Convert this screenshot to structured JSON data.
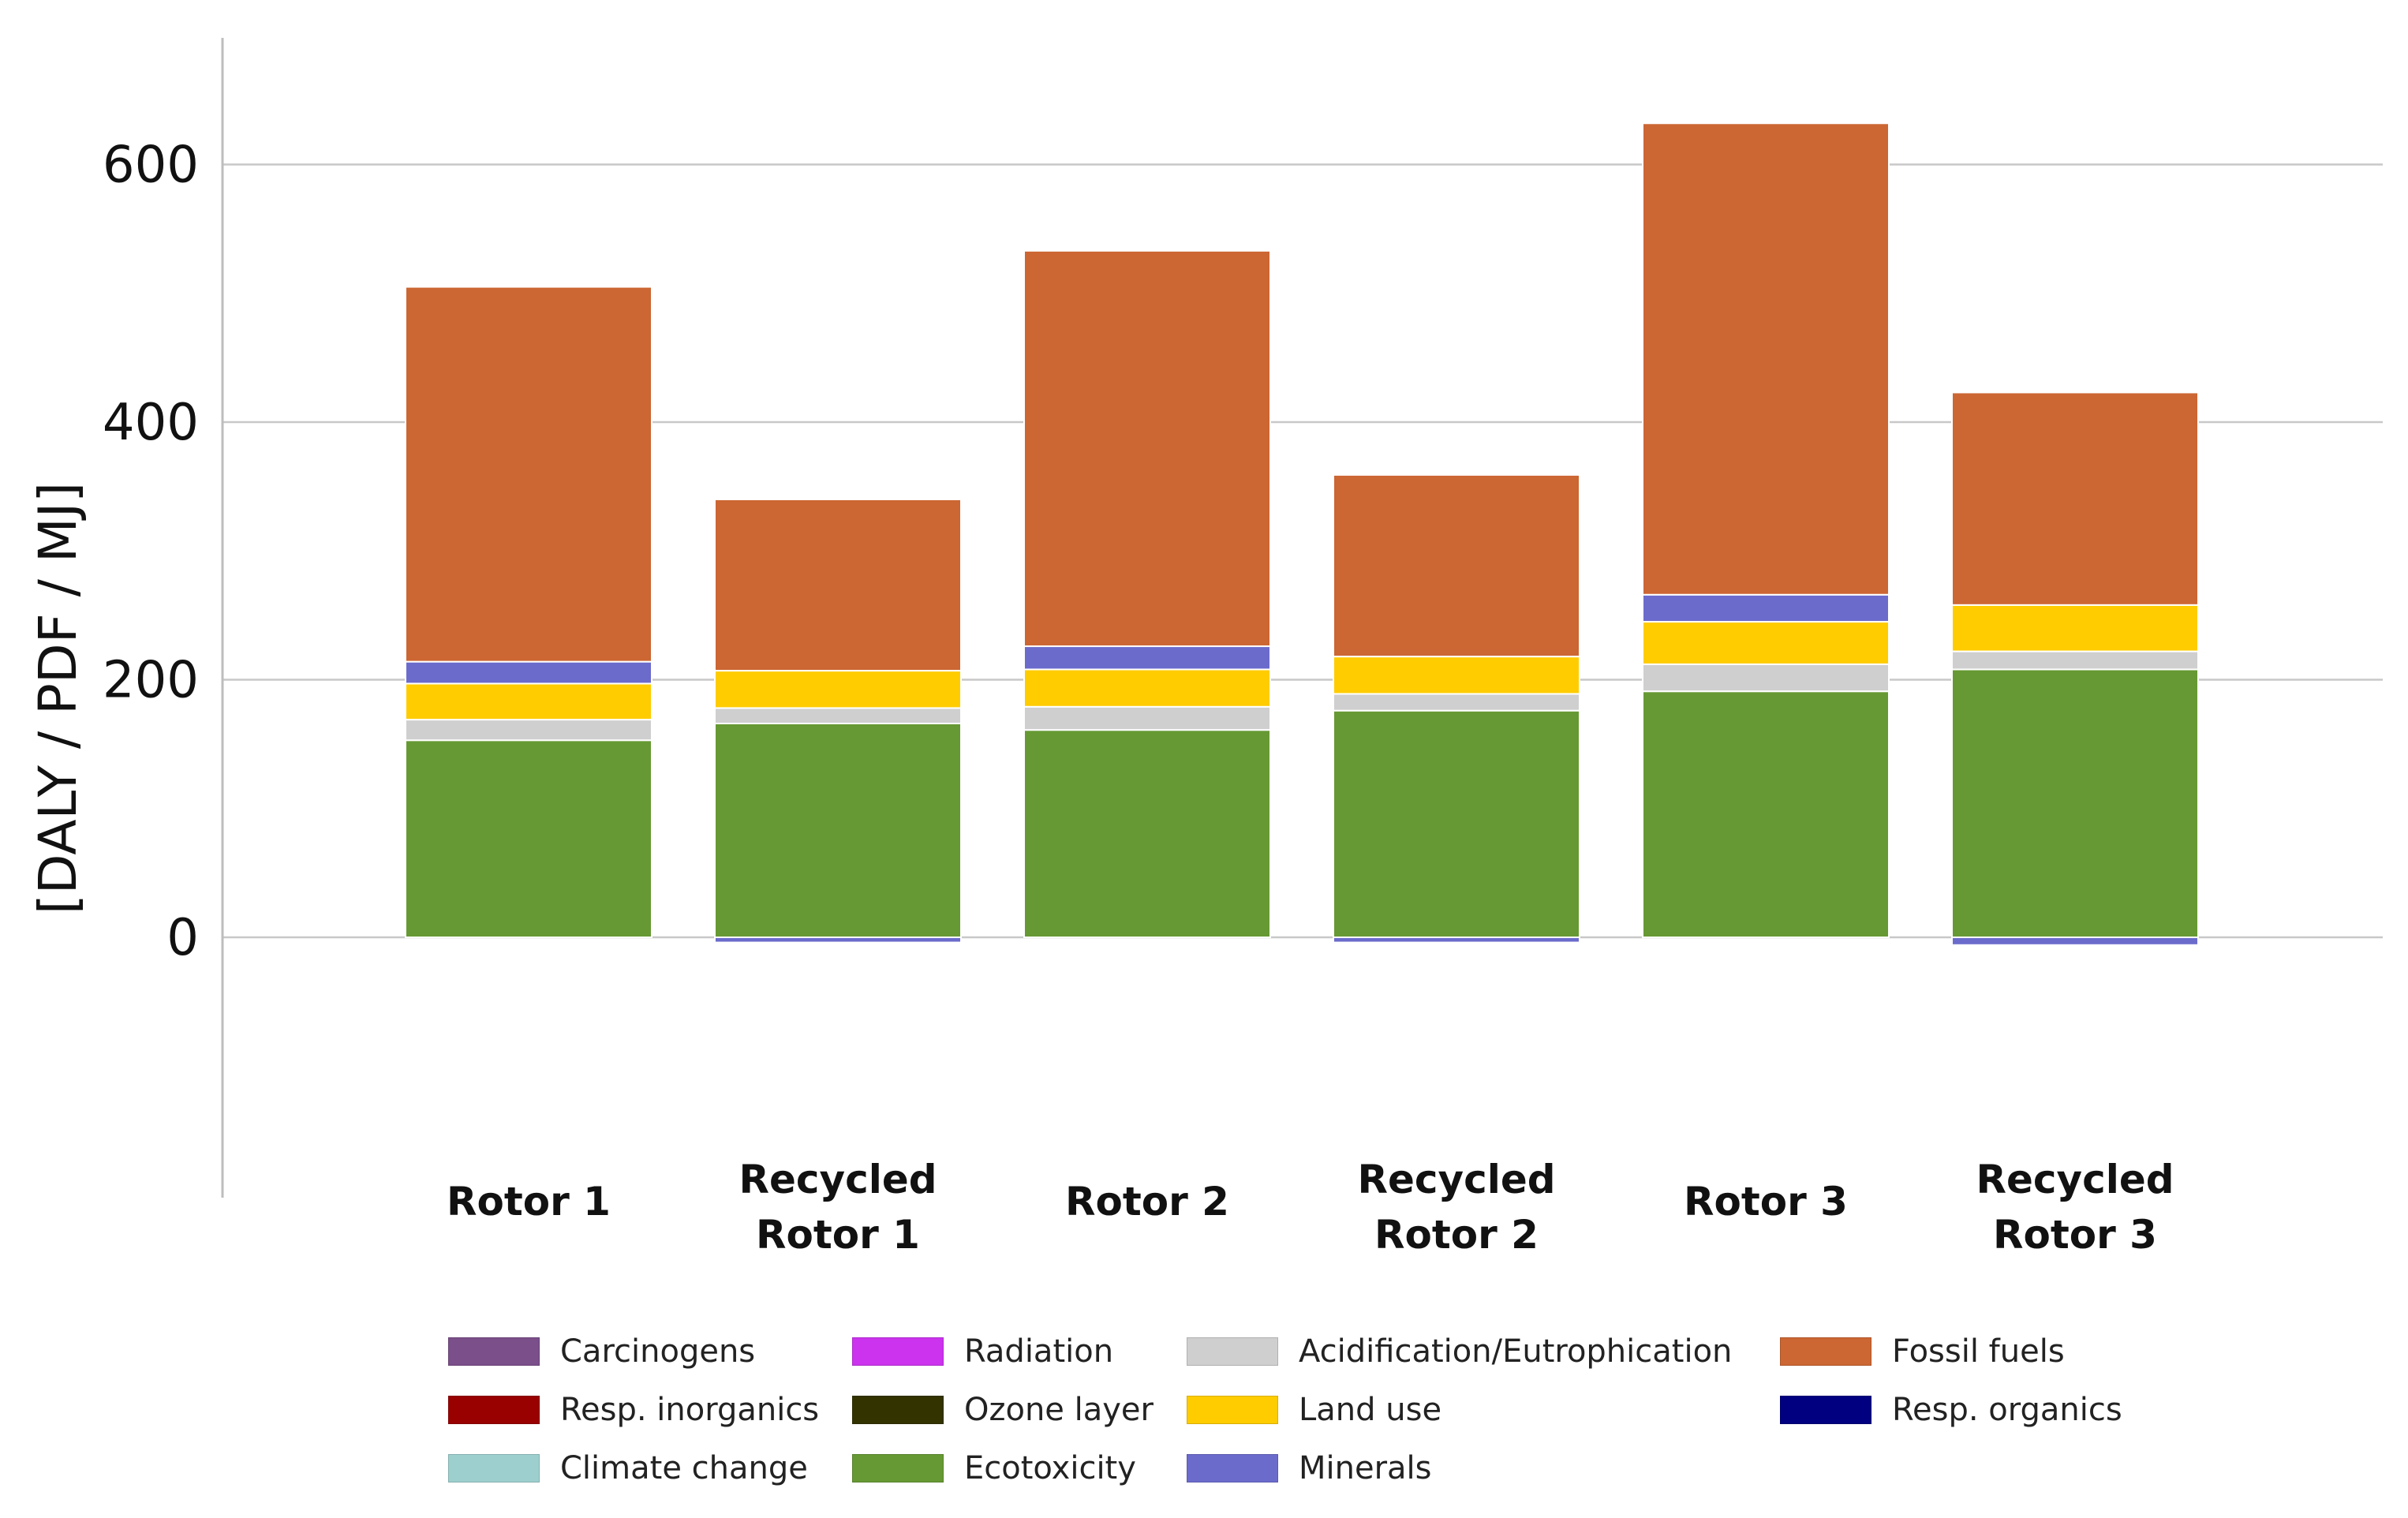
{
  "chart_data": {
    "type": "bar",
    "stacked": true,
    "title": "",
    "xlabel": "",
    "ylabel": "[DALY / PDF / MJ]",
    "ylim": [
      -200,
      700
    ],
    "yticks": [
      0,
      200,
      400,
      600
    ],
    "grid": true,
    "legend_position": "bottom",
    "categories": [
      [
        "Rotor 1"
      ],
      [
        "Recycled",
        "Rotor 1"
      ],
      [
        "Rotor 2"
      ],
      [
        "Recycled",
        "Rotor 2"
      ],
      [
        "Rotor 3"
      ],
      [
        "Recycled",
        "Rotor 3"
      ]
    ],
    "series": [
      {
        "name": "Carcinogens",
        "color": "#7B4F8A",
        "values": [
          0,
          0,
          0,
          0,
          0,
          0
        ]
      },
      {
        "name": "Resp. inorganics",
        "color": "#990000",
        "values": [
          0,
          0,
          0,
          0,
          0,
          0
        ]
      },
      {
        "name": "Climate change",
        "color": "#9ECFCF",
        "values": [
          0,
          0,
          0,
          0,
          0,
          0
        ]
      },
      {
        "name": "Radiation",
        "color": "#CC33EE",
        "values": [
          0,
          0,
          0,
          0,
          0,
          0
        ]
      },
      {
        "name": "Ozone layer",
        "color": "#333300",
        "values": [
          0,
          0,
          0,
          0,
          0,
          0
        ]
      },
      {
        "name": "Ecotoxicity",
        "color": "#669933",
        "values": [
          153,
          166,
          161,
          176,
          191,
          208
        ]
      },
      {
        "name": "Acidification/Eutrophication",
        "color": "#CFCFCF",
        "values": [
          16,
          12,
          18,
          13,
          21,
          14
        ]
      },
      {
        "name": "Land use",
        "color": "#FFCC00",
        "values": [
          28,
          29,
          29,
          29,
          33,
          36
        ]
      },
      {
        "name": "Minerals",
        "color": "#6B6BCC",
        "values": [
          17,
          -4,
          18,
          -4,
          21,
          -6
        ]
      },
      {
        "name": "Fossil fuels",
        "color": "#CC6633",
        "values": [
          291,
          133,
          307,
          141,
          366,
          165
        ]
      },
      {
        "name": "Resp. organics",
        "color": "#000080",
        "values": [
          0,
          0,
          0,
          0,
          0,
          0
        ]
      }
    ]
  }
}
